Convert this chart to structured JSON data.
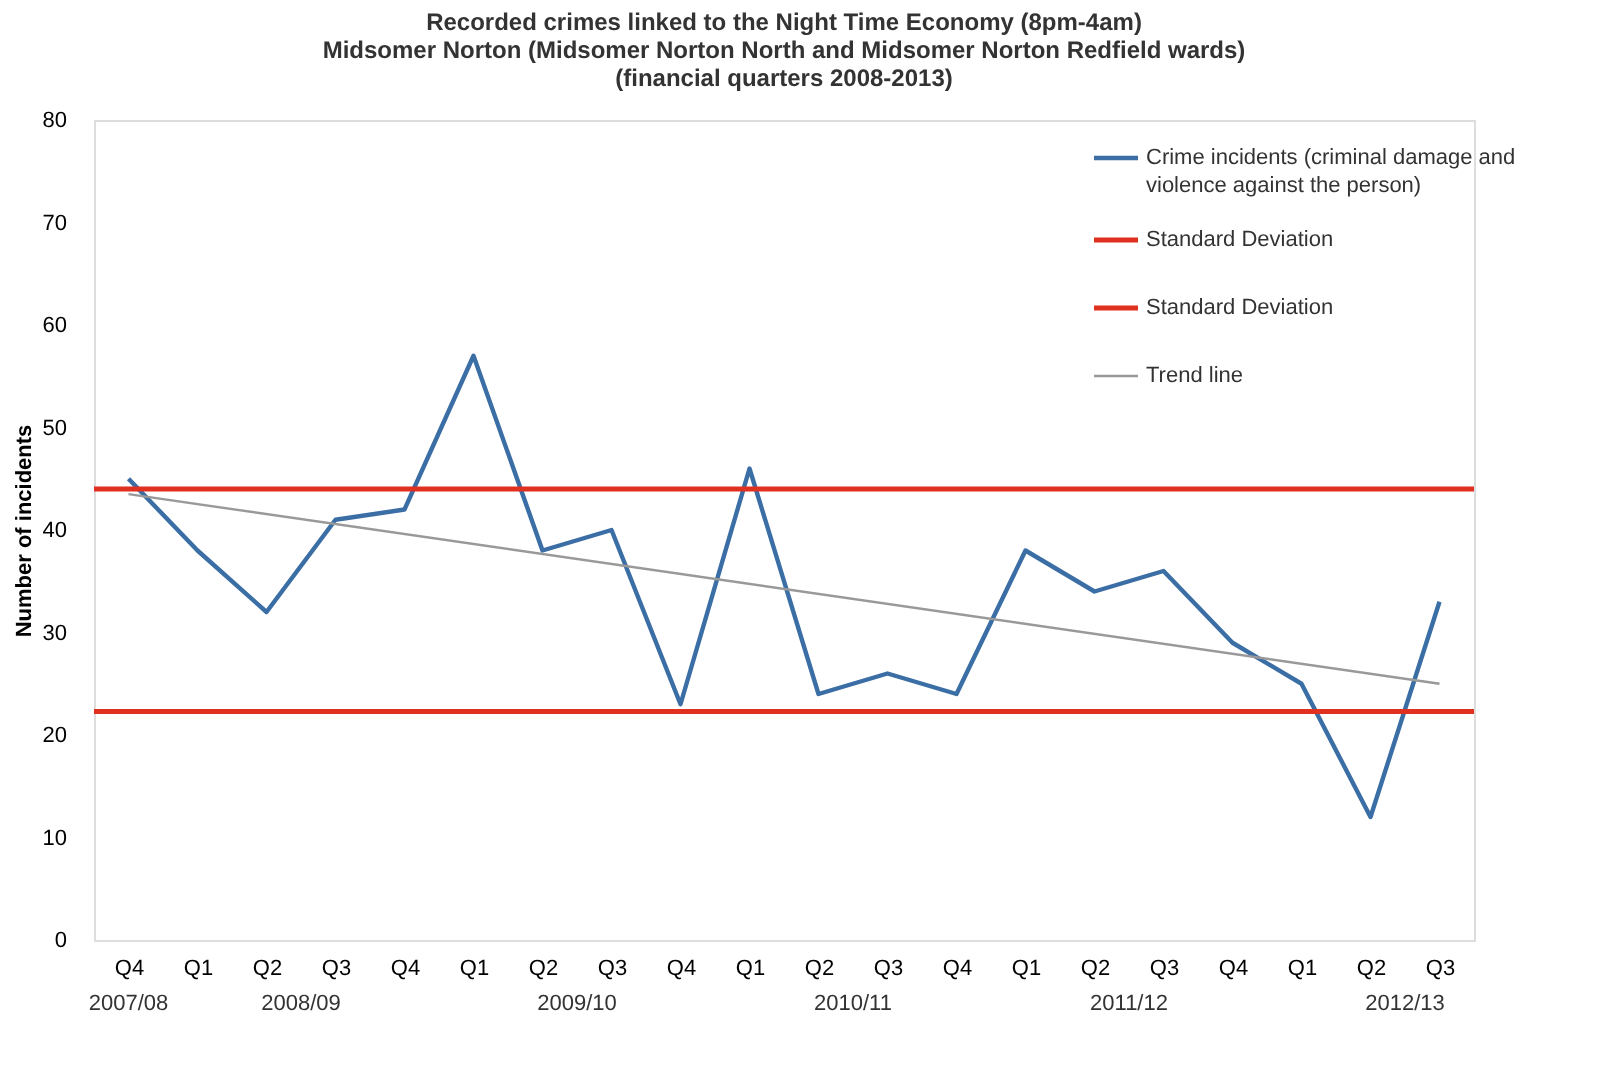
{
  "chart_data": {
    "type": "line",
    "title": "Recorded crimes linked to the Night Time Economy (8pm-4am)\nMidsomer Norton  (Midsomer Norton North and Midsomer Norton Redfield wards)\n(financial quarters 2008-2013)",
    "ylabel": "Number of incidents",
    "categories": [
      "Q4",
      "Q1",
      "Q2",
      "Q3",
      "Q4",
      "Q1",
      "Q2",
      "Q3",
      "Q4",
      "Q1",
      "Q2",
      "Q3",
      "Q4",
      "Q1",
      "Q2",
      "Q3",
      "Q4",
      "Q1",
      "Q2",
      "Q3"
    ],
    "annotations": [
      "2007/08",
      "2008/09",
      "2009/10",
      "2010/11",
      "2011/12",
      "2012/13"
    ],
    "series": [
      {
        "name": "Crime incidents (criminal damage and violence against the person)",
        "color": "#3a6ea5",
        "values": [
          45,
          38,
          32,
          41,
          42,
          57,
          38,
          40,
          23,
          46,
          24,
          26,
          24,
          38,
          34,
          36,
          29,
          25,
          12,
          33
        ]
      },
      {
        "name": "Trend line",
        "type": "line",
        "color": "#999999",
        "values": [
          43.5,
          null,
          null,
          null,
          null,
          null,
          null,
          null,
          null,
          null,
          null,
          null,
          null,
          null,
          null,
          null,
          null,
          null,
          null,
          25
        ]
      }
    ],
    "ref_lines": [
      {
        "axis": "y",
        "value": 44,
        "label": "Standard Deviation",
        "color": "#e03020"
      },
      {
        "axis": "y",
        "value": 22.3,
        "label": "Standard Deviation",
        "color": "#e03020"
      }
    ],
    "ylim": [
      0,
      80
    ],
    "yticks": [
      0,
      10,
      20,
      30,
      40,
      50,
      60,
      70,
      80
    ],
    "grid": false,
    "legend": "top right",
    "marker": "none",
    "line_style": "solid"
  }
}
